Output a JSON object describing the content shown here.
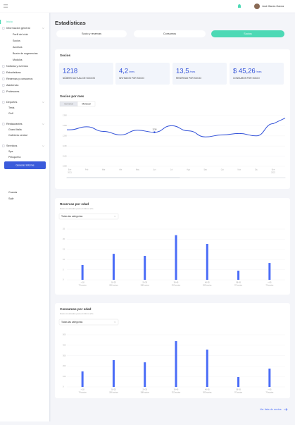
{
  "header": {
    "user": "José García García"
  },
  "sidebar": {
    "home": "Inicio",
    "sections": [
      {
        "label": "Información general",
        "children": [
          "Perfil del club",
          "Socios",
          "Accesos",
          "Buzón de sugerencias",
          "Módulos"
        ]
      },
      {
        "label": "Noticias y eventos"
      },
      {
        "label": "Estadísticas"
      },
      {
        "label": "Reservas y consumos"
      },
      {
        "label": "Asistencia"
      },
      {
        "label": "Profesores"
      },
      {
        "label": "Deportes",
        "children": [
          "Tenis",
          "Golf"
        ]
      },
      {
        "label": "Restaurantes",
        "children": [
          "Grand Italia",
          "Cafetería central"
        ]
      },
      {
        "label": "Servicios",
        "children": [
          "Spa",
          "Peluquería"
        ]
      }
    ],
    "button": "Generar Informe",
    "bottom": [
      "Cuenta",
      "Salir"
    ]
  },
  "page": {
    "title": "Estadísticas",
    "tabs": [
      "Socio y reservas",
      "Consumos",
      "Socios"
    ],
    "active_tab": 2
  },
  "socios": {
    "title": "Socios",
    "stats": [
      {
        "value": "1218",
        "label": "NÚMERO ACTUAL DE SOCIOS"
      },
      {
        "value": "4,2",
        "unit": "/mes",
        "label": "INVITADOS POR SOCIO"
      },
      {
        "value": "13,5",
        "unit": "/mes",
        "label": "RESERVAS POR SOCIO"
      },
      {
        "value": "$ 45,26",
        "unit": "/mes",
        "label": "CONSUMOS POR SOCIO"
      }
    ]
  },
  "charts": [
    {
      "type": "line",
      "title": "Socios por mes",
      "toggle": [
        "Semanal",
        "Mensual"
      ],
      "active_toggle": 1,
      "color": "#2f4fd8",
      "categories": [
        "Ene",
        "Feb",
        "Mar",
        "Abr",
        "May",
        "Jun",
        "Jul",
        "Ago",
        "Sep",
        "Oct",
        "Nov",
        "Dic",
        "Ene"
      ],
      "years": [
        "2021",
        null,
        null,
        null,
        null,
        null,
        null,
        null,
        null,
        null,
        null,
        null,
        "2022"
      ],
      "values": [
        1230,
        1245,
        1222,
        1205,
        1228,
        1218,
        1250,
        1225,
        1195,
        1205,
        1212,
        1200,
        1260
      ],
      "annotated": 5,
      "ylim": [
        1050,
        1300
      ],
      "yticks": [
        1050,
        1100,
        1150,
        1200,
        1250,
        1300
      ]
    },
    {
      "type": "bar",
      "title": "Reservas por edad",
      "subtitle": "Datos mostrados para el último año",
      "filter": "Todas las categorías",
      "color": "#4a6cf7",
      "categories": [
        "< 18",
        "18-25",
        "26-35",
        "36-45",
        "46-55",
        "56-65",
        "> 65"
      ],
      "sublabels": [
        "74 socios",
        "206 socios",
        "188 socios",
        "312 socios",
        "265 socios",
        "97 socios",
        "76 socios"
      ],
      "values": [
        7.3,
        12.8,
        11.8,
        22,
        17.7,
        4.5,
        8.3
      ],
      "ylim": [
        0,
        25
      ],
      "yticks": [
        0,
        5,
        10,
        15,
        20,
        25
      ]
    },
    {
      "type": "bar",
      "title": "Consumos por edad",
      "subtitle": "Datos mostrados para el último año",
      "filter": "Todas las categorías",
      "color": "#4a6cf7",
      "categories": [
        "< 18",
        "18-25",
        "26-35",
        "36-45",
        "46-55",
        "56-65",
        "> 65"
      ],
      "sublabels": [
        "74 socios",
        "206 socios",
        "188 socios",
        "312 socios",
        "265 socios",
        "97 socios",
        "76 socios"
      ],
      "values": [
        149,
        257,
        236,
        439,
        358,
        95,
        176
      ],
      "ylim": [
        0,
        500
      ],
      "yticks": [
        0,
        100,
        200,
        300,
        400,
        500
      ]
    }
  ],
  "footer_link": "Ver lista de socios"
}
